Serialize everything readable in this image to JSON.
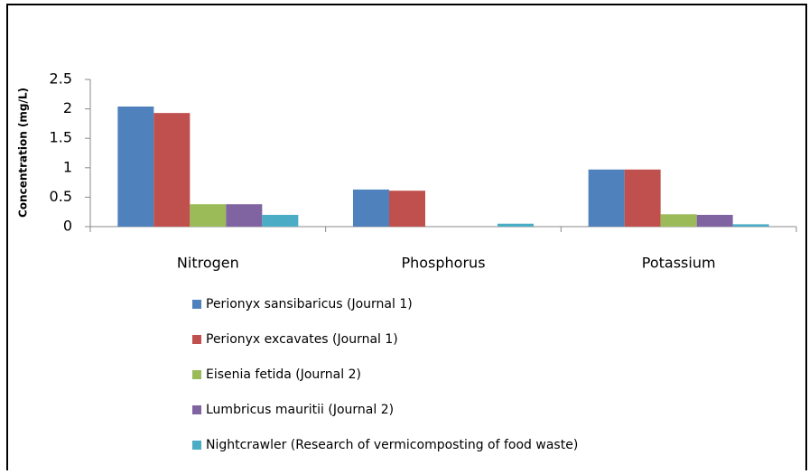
{
  "chart_data": {
    "type": "bar",
    "ylabel": "Concentration (mg/L)",
    "categories": [
      "Nitrogen",
      "Phosphorus",
      "Potassium"
    ],
    "series": [
      {
        "name": "Perionyx sansibaricus (Journal 1)",
        "color": "#4f81bd",
        "values": [
          2.04,
          0.63,
          0.97
        ]
      },
      {
        "name": "Perionyx excavates (Journal 1)",
        "color": "#c0504d",
        "values": [
          1.93,
          0.61,
          0.97
        ]
      },
      {
        "name": "Eisenia fetida (Journal 2)",
        "color": "#9bbb59",
        "values": [
          0.38,
          0,
          0.21
        ]
      },
      {
        "name": "Lumbricus mauritii (Journal 2)",
        "color": "#8064a2",
        "values": [
          0.38,
          0,
          0.2
        ]
      },
      {
        "name": "Nightcrawler (Research of vermicomposting of food waste)",
        "color": "#4bacc6",
        "values": [
          0.2,
          0.05,
          0.04
        ]
      }
    ],
    "ylim": [
      0,
      2.5
    ],
    "yticks": [
      0,
      0.5,
      1,
      1.5,
      2,
      2.5
    ],
    "grid": false,
    "legend": "bottom"
  }
}
